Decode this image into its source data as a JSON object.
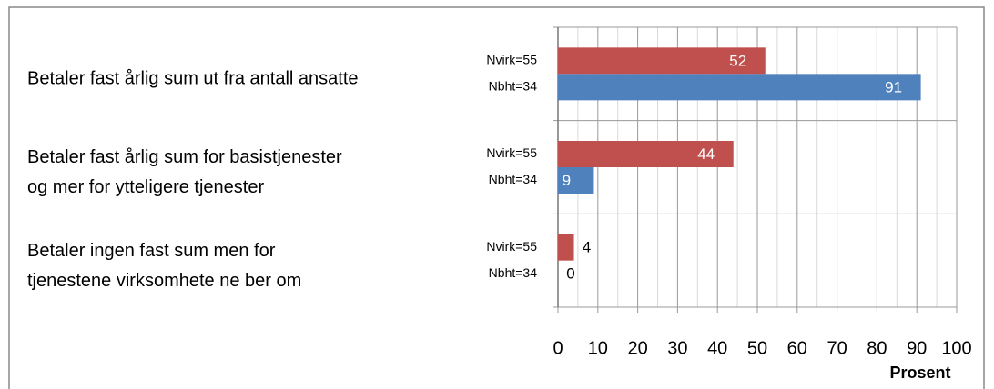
{
  "chart_data": {
    "type": "hbar",
    "categories": [
      "Betaler fast årlig sum ut fra antall ansatte",
      "Betaler fast årlig sum for basistjenester\nog mer for ytteligere tjenester",
      "Betaler ingen fast sum men for\ntjenestene virksomhete ne ber om"
    ],
    "series": [
      {
        "name": "Nvirk=55",
        "color": "#c0504d",
        "values": [
          52,
          44,
          4
        ]
      },
      {
        "name": "Nbht=34",
        "color": "#4f81bd",
        "values": [
          91,
          9,
          0
        ]
      }
    ],
    "xlabel": "Prosent",
    "xlim": [
      0,
      100
    ],
    "xticks": [
      0,
      10,
      20,
      30,
      40,
      50,
      60,
      70,
      80,
      90,
      100
    ],
    "minor_xticks": [
      5,
      15,
      25,
      35,
      45,
      55,
      65,
      75,
      85,
      95
    ],
    "grid": true
  }
}
